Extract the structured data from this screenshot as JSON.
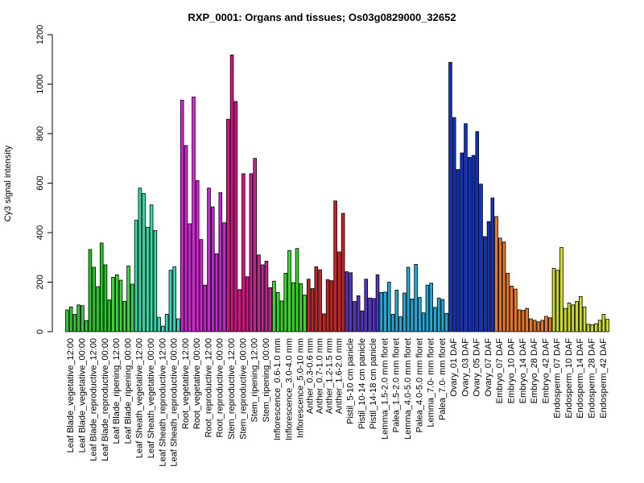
{
  "chart_data": {
    "type": "bar",
    "title": "RXP_0001: Organs and tissues; Os03g0829000_32652",
    "ylabel": "Cy3 signal intensity",
    "xlabel": "",
    "ylim": [
      0,
      1200
    ],
    "yticks": [
      0,
      200,
      400,
      600,
      800,
      1000,
      1200
    ],
    "grid": false,
    "legend": "none",
    "groups": [
      {
        "label": "Leaf Blade_vegetative_12:00",
        "color": "#33cc33",
        "values": [
          88,
          100,
          70
        ]
      },
      {
        "label": "Leaf Blade_vegetative_00:00",
        "color": "#33cc33",
        "values": [
          108,
          105,
          45
        ]
      },
      {
        "label": "Leaf Blade_reproductive_12:00",
        "color": "#22cc22",
        "values": [
          332,
          260,
          182
        ]
      },
      {
        "label": "Leaf Blade_reproductive_00:00",
        "color": "#22cc22",
        "values": [
          358,
          270,
          128
        ]
      },
      {
        "label": "Leaf Blade_ripening_12:00",
        "color": "#33dd33",
        "values": [
          220,
          230,
          208
        ]
      },
      {
        "label": "Leaf Blade_ripening_00:00",
        "color": "#33dd33",
        "values": [
          122,
          265,
          192
        ]
      },
      {
        "label": "Leaf Sheath_vegetative_12:00",
        "color": "#33ddaa",
        "values": [
          450,
          580,
          558
        ]
      },
      {
        "label": "Leaf Sheath_vegetative_00:00",
        "color": "#33ddaa",
        "values": [
          422,
          512,
          408
        ]
      },
      {
        "label": "Leaf Sheath_reproductive_12:00",
        "color": "#33ddbb",
        "values": [
          58,
          22,
          70
        ]
      },
      {
        "label": "Leaf Sheath_reproductive_00:00",
        "color": "#33ddbb",
        "values": [
          248,
          262,
          52
        ]
      },
      {
        "label": "Root_vegetative_12:00",
        "color": "#dd22dd",
        "values": [
          935,
          752,
          436
        ]
      },
      {
        "label": "Root_vegetative_00:00",
        "color": "#dd22dd",
        "values": [
          948,
          610,
          372
        ]
      },
      {
        "label": "Root_reproductive_12:00",
        "color": "#cc22dd",
        "values": [
          188,
          580,
          504
        ]
      },
      {
        "label": "Root_reproductive_00:00",
        "color": "#cc22dd",
        "values": [
          315,
          562,
          440
        ]
      },
      {
        "label": "Stem_reproductive_12:00",
        "color": "#dd1188",
        "values": [
          858,
          1118,
          930
        ]
      },
      {
        "label": "Stem_reproductive_00:00",
        "color": "#dd1188",
        "values": [
          170,
          638,
          222
        ]
      },
      {
        "label": "Stem_ripening_12:00",
        "color": "#cc2299",
        "values": [
          638,
          700,
          310
        ]
      },
      {
        "label": "Stem_ripening_00:00",
        "color": "#cc2299",
        "values": [
          270,
          285,
          178
        ]
      },
      {
        "label": "Inflorescence_0.6-1.0 mm",
        "color": "#33dd22",
        "values": [
          204,
          158,
          124
        ]
      },
      {
        "label": "Inflorescence_3.0-4.0 mm",
        "color": "#33dd22",
        "values": [
          236,
          328,
          198
        ]
      },
      {
        "label": "Inflorescence_5.0-10 mm",
        "color": "#33dd22",
        "values": [
          336,
          194,
          148
        ]
      },
      {
        "label": "Anther_0.3-0.6 mm",
        "color": "#cc2222",
        "values": [
          212,
          174
        ]
      },
      {
        "label": "Anther_0.7-1.0 mm",
        "color": "#cc2222",
        "values": [
          262,
          250,
          72
        ]
      },
      {
        "label": "Anther_1.2-1.5 mm",
        "color": "#cc2222",
        "values": [
          210,
          206
        ]
      },
      {
        "label": "Anther_1.6-2.0 mm",
        "color": "#cc2222",
        "values": [
          528,
          322,
          478
        ]
      },
      {
        "label": "Pistil_5-10 cm panicle",
        "color": "#5533cc",
        "values": [
          242,
          238,
          122
        ]
      },
      {
        "label": "Pistil_10-14 cm panicle",
        "color": "#5533cc",
        "values": [
          145,
          84,
          212
        ]
      },
      {
        "label": "Pistil_14-18 cm panicle",
        "color": "#5533cc",
        "values": [
          136,
          134,
          230
        ]
      },
      {
        "label": "Lemma_1.5-2.0 mm floret",
        "color": "#22aadd",
        "values": [
          158,
          160,
          200
        ]
      },
      {
        "label": "Palea_1.5-2.0 mm floret",
        "color": "#22aadd",
        "values": [
          70,
          168,
          60
        ]
      },
      {
        "label": "Lemma_4.0-5.0 mm floret",
        "color": "#22aadd",
        "values": [
          156,
          260,
          132
        ]
      },
      {
        "label": "Palea_4.0-5.0 mm floret",
        "color": "#22aadd",
        "values": [
          272,
          138,
          76
        ]
      },
      {
        "label": "Lemma_7.0- mm floret",
        "color": "#22aadd",
        "values": [
          188,
          196,
          98
        ]
      },
      {
        "label": "Palea_7.0- mm floret",
        "color": "#22aadd",
        "values": [
          136,
          130,
          74
        ]
      },
      {
        "label": "Ovary_01 DAF",
        "color": "#1133cc",
        "values": [
          1088,
          865,
          655
        ]
      },
      {
        "label": "Ovary_03 DAF",
        "color": "#1133cc",
        "values": [
          722,
          840,
          704
        ]
      },
      {
        "label": "Ovary_05 DAF",
        "color": "#1133cc",
        "values": [
          712,
          808,
          596
        ]
      },
      {
        "label": "Ovary_07 DAF",
        "color": "#1133cc",
        "values": [
          384,
          445,
          540
        ]
      },
      {
        "label": "Embryo_07 DAF",
        "color": "#ee7722",
        "values": [
          465,
          378,
          362
        ]
      },
      {
        "label": "Embryo_10 DAF",
        "color": "#ee7722",
        "values": [
          236,
          184,
          172
        ]
      },
      {
        "label": "Embryo_14 DAF",
        "color": "#ee7722",
        "values": [
          88,
          86,
          94
        ]
      },
      {
        "label": "Embryo_28 DAF",
        "color": "#ee7722",
        "values": [
          52,
          46,
          40
        ]
      },
      {
        "label": "Embryo_42 DAF",
        "color": "#ee7722",
        "values": [
          46,
          62,
          56
        ]
      },
      {
        "label": "Endosperm_07 DAF",
        "color": "#ccdd22",
        "values": [
          256,
          248,
          340
        ]
      },
      {
        "label": "Endosperm_10 DAF",
        "color": "#ccdd22",
        "values": [
          94,
          116,
          108
        ]
      },
      {
        "label": "Endosperm_14 DAF",
        "color": "#ccdd22",
        "values": [
          122,
          142,
          100
        ]
      },
      {
        "label": "Endosperm_28 DAF",
        "color": "#ccdd22",
        "values": [
          30,
          28,
          32
        ]
      },
      {
        "label": "Endosperm_42 DAF",
        "color": "#ccdd22",
        "values": [
          46,
          70,
          50
        ]
      }
    ]
  }
}
